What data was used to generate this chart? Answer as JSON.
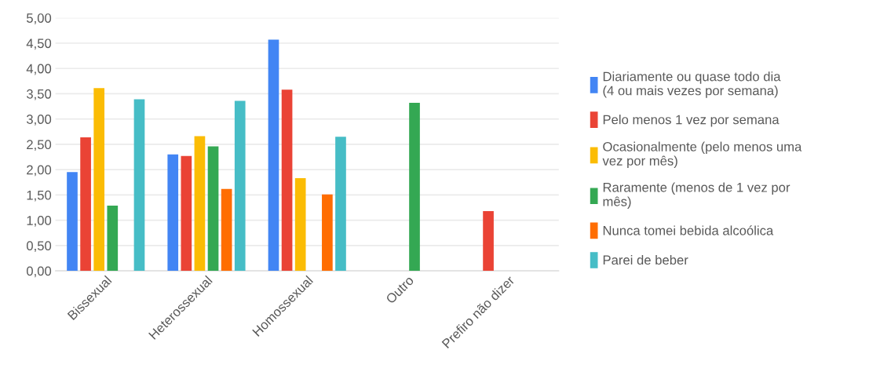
{
  "chart_data": {
    "type": "bar",
    "categories": [
      "Bissexual",
      "Heterossexual",
      "Homossexual",
      "Outro",
      "Prefiro não dizer"
    ],
    "series": [
      {
        "name": "Diariamente ou quase todo dia (4 ou mais vezes por semana)",
        "color": "#4285f4",
        "values": [
          1.95,
          2.3,
          4.57,
          null,
          null
        ]
      },
      {
        "name": "Pelo menos 1 vez por semana",
        "color": "#ea4335",
        "values": [
          2.64,
          2.27,
          3.58,
          null,
          1.18
        ]
      },
      {
        "name": "Ocasionalmente (pelo menos uma vez por mês)",
        "color": "#fbbc04",
        "values": [
          3.61,
          2.66,
          1.83,
          null,
          null
        ]
      },
      {
        "name": "Raramente (menos de 1 vez por mês)",
        "color": "#34a853",
        "values": [
          1.29,
          2.46,
          null,
          3.32,
          null
        ]
      },
      {
        "name": "Nunca tomei bebida alcoólica",
        "color": "#ff6d01",
        "values": [
          null,
          1.62,
          1.51,
          null,
          null
        ]
      },
      {
        "name": "Parei de beber",
        "color": "#46bdc6",
        "values": [
          3.39,
          3.36,
          2.65,
          null,
          null
        ]
      }
    ],
    "ylim": [
      0,
      5
    ],
    "yticks": [
      {
        "value": 0,
        "label": "0,00"
      },
      {
        "value": 0.5,
        "label": "0,50"
      },
      {
        "value": 1,
        "label": "1,00"
      },
      {
        "value": 1.5,
        "label": "1,50"
      },
      {
        "value": 2,
        "label": "2,00"
      },
      {
        "value": 2.5,
        "label": "2,50"
      },
      {
        "value": 3,
        "label": "3,00"
      },
      {
        "value": 3.5,
        "label": "3,50"
      },
      {
        "value": 4,
        "label": "4,00"
      },
      {
        "value": 4.5,
        "label": "4,50"
      },
      {
        "value": 5,
        "label": "5,00"
      }
    ],
    "grid": "y",
    "legend": "right"
  }
}
